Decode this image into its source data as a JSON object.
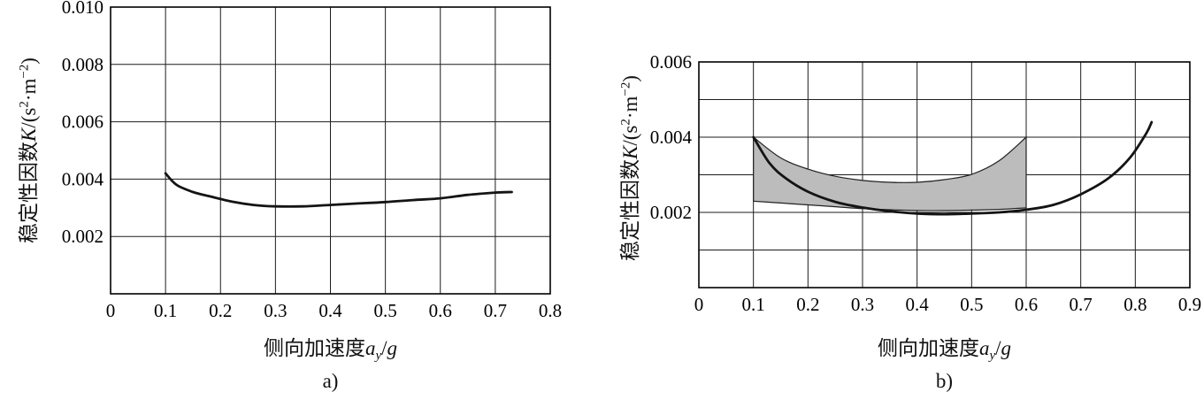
{
  "page": {
    "background": "#ffffff"
  },
  "style": {
    "curve_color": "#141414",
    "grid_color": "#1c1c1c",
    "border_color": "#000000",
    "band_fill": "#bcbcbc",
    "band_edge": "#222222"
  },
  "chart_data": [
    {
      "id": "a",
      "type": "line",
      "title": "",
      "sublabel": "a)",
      "xlabel": "侧向加速度ay/g",
      "ylabel": "稳定性因数K/(s²·m⁻²)",
      "xlabel_parts": {
        "prefix": "侧向加速度",
        "var": "a",
        "sub": "y",
        "slash": "/",
        "var2": "g"
      },
      "ylabel_parts": {
        "prefix": "稳定性因数",
        "var": "K",
        "open": "/(s",
        "sup1": "2",
        "mid": "·m",
        "sup2": "−2",
        "close": ")"
      },
      "xlim": [
        0,
        0.8
      ],
      "ylim": [
        0,
        0.01
      ],
      "grid": true,
      "legend": "none",
      "xticks": [
        0,
        0.1,
        0.2,
        0.3,
        0.4,
        0.5,
        0.6,
        0.7,
        0.8
      ],
      "xtick_labels": [
        "0",
        "0.1",
        "0.2",
        "0.3",
        "0.4",
        "0.5",
        "0.6",
        "0.7",
        "0.8"
      ],
      "yticks": [
        0.002,
        0.004,
        0.006,
        0.008,
        0.01
      ],
      "ytick_labels": [
        "0.002",
        "0.004",
        "0.006",
        "0.008",
        "0.010"
      ],
      "xgrid": [
        0.1,
        0.2,
        0.3,
        0.4,
        0.5,
        0.6,
        0.7
      ],
      "ygrid": [
        0.002,
        0.004,
        0.006,
        0.008
      ],
      "bands": [],
      "series": [
        {
          "name": "stability-factor-curve",
          "points": [
            [
              0.1,
              0.0042
            ],
            [
              0.12,
              0.0038
            ],
            [
              0.15,
              0.00355
            ],
            [
              0.18,
              0.0034
            ],
            [
              0.22,
              0.00322
            ],
            [
              0.26,
              0.0031
            ],
            [
              0.3,
              0.00305
            ],
            [
              0.35,
              0.00305
            ],
            [
              0.4,
              0.0031
            ],
            [
              0.45,
              0.00315
            ],
            [
              0.5,
              0.0032
            ],
            [
              0.55,
              0.00327
            ],
            [
              0.6,
              0.00333
            ],
            [
              0.65,
              0.00345
            ],
            [
              0.7,
              0.00353
            ],
            [
              0.73,
              0.00355
            ]
          ]
        }
      ]
    },
    {
      "id": "b",
      "type": "line",
      "title": "",
      "sublabel": "b)",
      "xlabel": "侧向加速度ay/g",
      "ylabel": "稳定性因数K/(s²·m⁻²)",
      "xlabel_parts": {
        "prefix": "侧向加速度",
        "var": "a",
        "sub": "y",
        "slash": "/",
        "var2": "g"
      },
      "ylabel_parts": {
        "prefix": "稳定性因数",
        "var": "K",
        "open": "/(s",
        "sup1": "2",
        "mid": "·m",
        "sup2": "−2",
        "close": ")"
      },
      "xlim": [
        0,
        0.9
      ],
      "ylim": [
        0,
        0.006
      ],
      "grid": true,
      "legend": "none",
      "xticks": [
        0,
        0.1,
        0.2,
        0.3,
        0.4,
        0.5,
        0.6,
        0.7,
        0.8,
        0.9
      ],
      "xtick_labels": [
        "0",
        "0.1",
        "0.2",
        "0.3",
        "0.4",
        "0.5",
        "0.6",
        "0.7",
        "0.8",
        "0.9"
      ],
      "yticks": [
        0.002,
        0.004,
        0.006
      ],
      "ytick_labels": [
        "0.002",
        "0.004",
        "0.006"
      ],
      "xgrid": [
        0.1,
        0.2,
        0.3,
        0.4,
        0.5,
        0.6,
        0.7,
        0.8
      ],
      "ygrid": [
        0.001,
        0.002,
        0.003,
        0.004,
        0.005
      ],
      "bands": [
        {
          "name": "shaded-variation-band",
          "upper": [
            [
              0.1,
              0.004
            ],
            [
              0.15,
              0.00345
            ],
            [
              0.2,
              0.00315
            ],
            [
              0.25,
              0.00296
            ],
            [
              0.3,
              0.00285
            ],
            [
              0.35,
              0.0028
            ],
            [
              0.4,
              0.0028
            ],
            [
              0.45,
              0.00287
            ],
            [
              0.5,
              0.00301
            ],
            [
              0.55,
              0.00337
            ],
            [
              0.6,
              0.004
            ]
          ],
          "lower": [
            [
              0.1,
              0.0023
            ],
            [
              0.15,
              0.00225
            ],
            [
              0.2,
              0.0022
            ],
            [
              0.25,
              0.00215
            ],
            [
              0.3,
              0.0021
            ],
            [
              0.35,
              0.00207
            ],
            [
              0.4,
              0.00205
            ],
            [
              0.45,
              0.00205
            ],
            [
              0.5,
              0.00206
            ],
            [
              0.55,
              0.00208
            ],
            [
              0.6,
              0.00212
            ]
          ]
        }
      ],
      "series": [
        {
          "name": "stability-factor-curve",
          "points": [
            [
              0.1,
              0.004
            ],
            [
              0.13,
              0.0033
            ],
            [
              0.16,
              0.0029
            ],
            [
              0.2,
              0.00255
            ],
            [
              0.25,
              0.00228
            ],
            [
              0.3,
              0.00213
            ],
            [
              0.35,
              0.00203
            ],
            [
              0.4,
              0.00197
            ],
            [
              0.45,
              0.00195
            ],
            [
              0.5,
              0.00197
            ],
            [
              0.55,
              0.002
            ],
            [
              0.6,
              0.00207
            ],
            [
              0.65,
              0.0022
            ],
            [
              0.7,
              0.00248
            ],
            [
              0.75,
              0.0029
            ],
            [
              0.79,
              0.00345
            ],
            [
              0.82,
              0.0041
            ],
            [
              0.83,
              0.0044
            ]
          ]
        }
      ]
    }
  ]
}
